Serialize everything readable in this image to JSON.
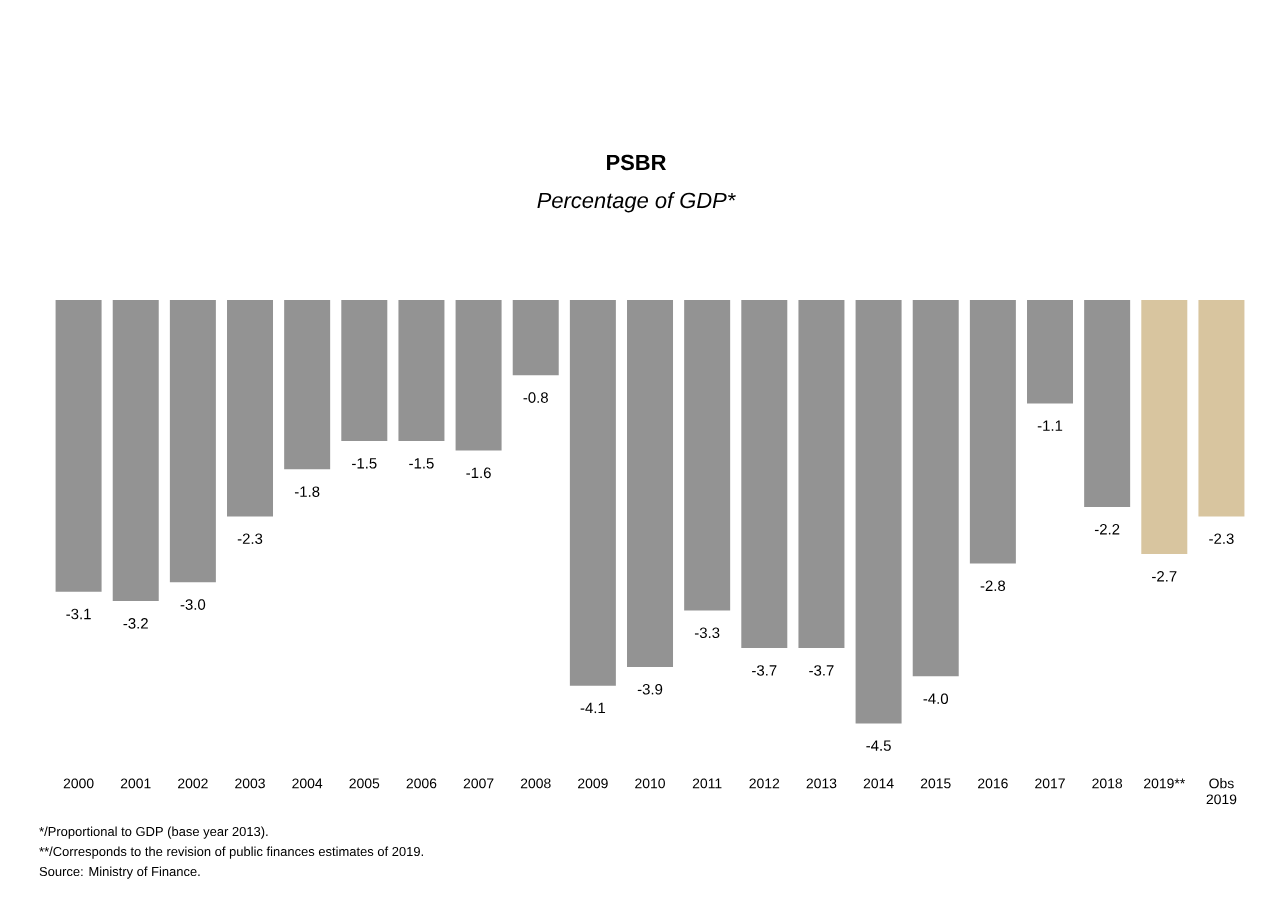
{
  "chart_data": {
    "type": "bar",
    "title": "PSBR",
    "subtitle": "Percentage of GDP*",
    "categories": [
      "2000",
      "2001",
      "2002",
      "2003",
      "2004",
      "2005",
      "2006",
      "2007",
      "2008",
      "2009",
      "2010",
      "2011",
      "2012",
      "2013",
      "2014",
      "2015",
      "2016",
      "2017",
      "2018",
      "2019**",
      "Obs 2019"
    ],
    "values": [
      -3.1,
      -3.2,
      -3.0,
      -2.3,
      -1.8,
      -1.5,
      -1.5,
      -1.6,
      -0.8,
      -4.1,
      -3.9,
      -3.3,
      -3.7,
      -3.7,
      -4.5,
      -4.0,
      -2.8,
      -1.1,
      -2.2,
      -2.7,
      -2.3
    ],
    "colors": [
      "#939393",
      "#939393",
      "#939393",
      "#939393",
      "#939393",
      "#939393",
      "#939393",
      "#939393",
      "#939393",
      "#939393",
      "#939393",
      "#939393",
      "#939393",
      "#939393",
      "#939393",
      "#939393",
      "#939393",
      "#939393",
      "#939393",
      "#d8c59f",
      "#d8c59f"
    ],
    "value_labels": [
      "-3.1",
      "-3.2",
      "-3.0",
      "-2.3",
      "-1.8",
      "-1.5",
      "-1.5",
      "-1.6",
      "-0.8",
      "-4.1",
      "-3.9",
      "-3.3",
      "-3.7",
      "-3.7",
      "-4.5",
      "-4.0",
      "-2.8",
      "-1.1",
      "-2.2",
      "-2.7",
      "-2.3"
    ],
    "annotations": [
      "*/Proportional to GDP (base year 2013).",
      "**/Corresponds to the revision of public finances estimates of 2019.",
      "Source: Ministry of Finance."
    ]
  }
}
